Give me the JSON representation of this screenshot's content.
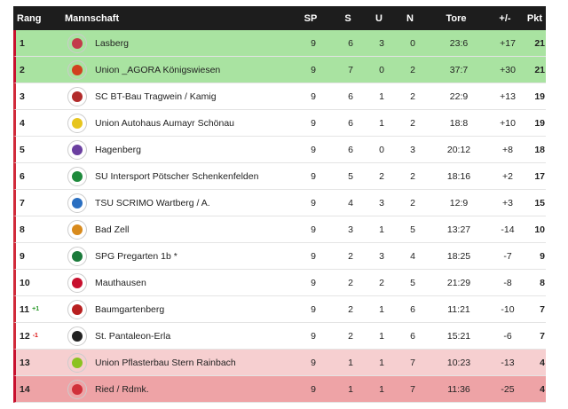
{
  "header": {
    "rang": "Rang",
    "team": "Mannschaft",
    "sp": "SP",
    "s": "S",
    "u": "U",
    "n": "N",
    "tore": "Tore",
    "diff": "+/-",
    "pkt": "Pkt"
  },
  "rows": [
    {
      "rank": "1",
      "trend": "",
      "team": "Lasberg",
      "sp": "9",
      "s": "6",
      "u": "3",
      "n": "0",
      "tore": "23:6",
      "diff": "+17",
      "pkt": "21",
      "logo": "#c23b4a"
    },
    {
      "rank": "2",
      "trend": "",
      "team": "Union _AGORA Königswiesen",
      "sp": "9",
      "s": "7",
      "u": "0",
      "n": "2",
      "tore": "37:7",
      "diff": "+30",
      "pkt": "21",
      "logo": "#d1401f"
    },
    {
      "rank": "3",
      "trend": "",
      "team": "SC BT-Bau Tragwein / Kamig",
      "sp": "9",
      "s": "6",
      "u": "1",
      "n": "2",
      "tore": "22:9",
      "diff": "+13",
      "pkt": "19",
      "logo": "#b22b2b"
    },
    {
      "rank": "4",
      "trend": "",
      "team": "Union Autohaus Aumayr Schönau",
      "sp": "9",
      "s": "6",
      "u": "1",
      "n": "2",
      "tore": "18:8",
      "diff": "+10",
      "pkt": "19",
      "logo": "#e7c51e"
    },
    {
      "rank": "5",
      "trend": "",
      "team": "Hagenberg",
      "sp": "9",
      "s": "6",
      "u": "0",
      "n": "3",
      "tore": "20:12",
      "diff": "+8",
      "pkt": "18",
      "logo": "#6b3fa0"
    },
    {
      "rank": "6",
      "trend": "",
      "team": "SU Intersport Pötscher Schenkenfelden",
      "sp": "9",
      "s": "5",
      "u": "2",
      "n": "2",
      "tore": "18:16",
      "diff": "+2",
      "pkt": "17",
      "logo": "#1e8a3c"
    },
    {
      "rank": "7",
      "trend": "",
      "team": "TSU SCRIMO Wartberg / A.",
      "sp": "9",
      "s": "4",
      "u": "3",
      "n": "2",
      "tore": "12:9",
      "diff": "+3",
      "pkt": "15",
      "logo": "#2a6fc1"
    },
    {
      "rank": "8",
      "trend": "",
      "team": "Bad Zell",
      "sp": "9",
      "s": "3",
      "u": "1",
      "n": "5",
      "tore": "13:27",
      "diff": "-14",
      "pkt": "10",
      "logo": "#d88a1c"
    },
    {
      "rank": "9",
      "trend": "",
      "team": "SPG Pregarten 1b *",
      "sp": "9",
      "s": "2",
      "u": "3",
      "n": "4",
      "tore": "18:25",
      "diff": "-7",
      "pkt": "9",
      "logo": "#1a7a3a"
    },
    {
      "rank": "10",
      "trend": "",
      "team": "Mauthausen",
      "sp": "9",
      "s": "2",
      "u": "2",
      "n": "5",
      "tore": "21:29",
      "diff": "-8",
      "pkt": "8",
      "logo": "#c8102e"
    },
    {
      "rank": "11",
      "trend": "+1",
      "trendDir": "up",
      "team": "Baumgartenberg",
      "sp": "9",
      "s": "2",
      "u": "1",
      "n": "6",
      "tore": "11:21",
      "diff": "-10",
      "pkt": "7",
      "logo": "#b81f1f"
    },
    {
      "rank": "12",
      "trend": "-1",
      "trendDir": "down",
      "team": "St. Pantaleon-Erla",
      "sp": "9",
      "s": "2",
      "u": "1",
      "n": "6",
      "tore": "15:21",
      "diff": "-6",
      "pkt": "7",
      "logo": "#222222"
    },
    {
      "rank": "13",
      "trend": "",
      "team": "Union Pflasterbau Stern Rainbach",
      "sp": "9",
      "s": "1",
      "u": "1",
      "n": "7",
      "tore": "10:23",
      "diff": "-13",
      "pkt": "4",
      "logo": "#8bc220"
    },
    {
      "rank": "14",
      "trend": "",
      "team": "Ried / Rdmk.",
      "sp": "9",
      "s": "1",
      "u": "1",
      "n": "7",
      "tore": "11:36",
      "diff": "-25",
      "pkt": "4",
      "logo": "#d0303a"
    }
  ]
}
